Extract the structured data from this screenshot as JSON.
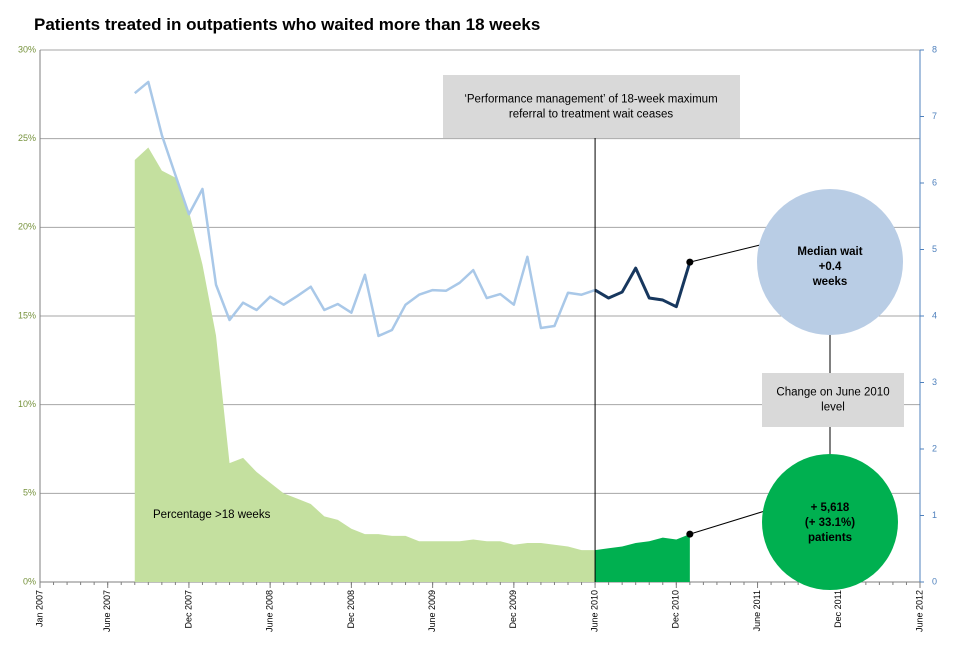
{
  "chart_data": {
    "type": "area-line",
    "title": "Patients treated in outpatients who waited more than 18 weeks",
    "x": [
      "2007-08",
      "2007-09",
      "2007-10",
      "2007-11",
      "2007-12",
      "2008-01",
      "2008-02",
      "2008-03",
      "2008-04",
      "2008-05",
      "2008-06",
      "2008-07",
      "2008-08",
      "2008-09",
      "2008-10",
      "2008-11",
      "2008-12",
      "2009-01",
      "2009-02",
      "2009-03",
      "2009-04",
      "2009-05",
      "2009-06",
      "2009-07",
      "2009-08",
      "2009-09",
      "2009-10",
      "2009-11",
      "2009-12",
      "2010-01",
      "2010-02",
      "2010-03",
      "2010-04",
      "2010-05",
      "2010-06",
      "2010-07",
      "2010-08",
      "2010-09",
      "2010-10",
      "2010-11",
      "2010-12",
      "2011-01"
    ],
    "highlight_from": "2010-06",
    "series": [
      {
        "name": "Percentage >18 weeks",
        "color": "#c4e09f",
        "highlight_color": "#00b050",
        "values": [
          23.8,
          24.5,
          23.2,
          22.8,
          20.9,
          17.9,
          13.9,
          6.7,
          7.0,
          6.2,
          5.6,
          5.0,
          4.7,
          4.4,
          3.7,
          3.5,
          3.0,
          2.7,
          2.7,
          2.6,
          2.6,
          2.3,
          2.3,
          2.3,
          2.3,
          2.4,
          2.3,
          2.3,
          2.1,
          2.2,
          2.2,
          2.1,
          2.0,
          1.8,
          1.8,
          1.9,
          2.0,
          2.2,
          2.3,
          2.5,
          2.4,
          2.7
        ]
      },
      {
        "color": "#a9c8e8",
        "highlight_color": "#17375e",
        "axis": "y2",
        "values": [
          7.35,
          7.52,
          6.72,
          6.12,
          5.53,
          5.91,
          4.47,
          3.94,
          4.2,
          4.09,
          4.29,
          4.17,
          4.3,
          4.44,
          4.09,
          4.18,
          4.05,
          4.62,
          3.7,
          3.79,
          4.17,
          4.32,
          4.39,
          4.38,
          4.5,
          4.69,
          4.27,
          4.33,
          4.17,
          4.89,
          3.82,
          3.85,
          4.35,
          4.32,
          4.39,
          4.27,
          4.36,
          4.72,
          4.27,
          4.24,
          4.14,
          4.81
        ]
      }
    ],
    "xlim": [
      "2007-01",
      "2012-06"
    ],
    "xticks": [
      {
        "value": "2007-01",
        "label": "Jan 2007"
      },
      {
        "value": "2007-06",
        "label": "June 2007"
      },
      {
        "value": "2007-12",
        "label": "Dec 2007"
      },
      {
        "value": "2008-06",
        "label": "June 2008"
      },
      {
        "value": "2008-12",
        "label": "Dec 2008"
      },
      {
        "value": "2009-06",
        "label": "June 2009"
      },
      {
        "value": "2009-12",
        "label": "Dec 2009"
      },
      {
        "value": "2010-06",
        "label": "June 2010"
      },
      {
        "value": "2010-12",
        "label": "Dec 2010"
      },
      {
        "value": "2011-06",
        "label": "June 2011"
      },
      {
        "value": "2011-12",
        "label": "Dec 2011"
      },
      {
        "value": "2012-06",
        "label": "June 2012"
      }
    ],
    "ylim": [
      0,
      30
    ],
    "yticks": [
      {
        "value": 0,
        "label": "0%"
      },
      {
        "value": 5,
        "label": "5%"
      },
      {
        "value": 10,
        "label": "10%"
      },
      {
        "value": 15,
        "label": "15%"
      },
      {
        "value": 20,
        "label": "20%"
      },
      {
        "value": 25,
        "label": "25%"
      },
      {
        "value": 30,
        "label": "30%"
      }
    ],
    "y2lim": [
      0,
      8
    ],
    "y2ticks": [
      0,
      1,
      2,
      3,
      4,
      5,
      6,
      7,
      8
    ],
    "grid": true,
    "annotations": [
      {
        "text": [
          "‘Performance management’ of 18-week maximum",
          "referral to treatment  wait ceases"
        ]
      },
      {
        "text": [
          "Median wait",
          "+0.4",
          "weeks"
        ]
      },
      {
        "text": [
          "Change on June 2010",
          "level"
        ]
      },
      {
        "text": [
          "+ 5,618",
          "(+ 33.1%)",
          "patients"
        ]
      }
    ]
  }
}
